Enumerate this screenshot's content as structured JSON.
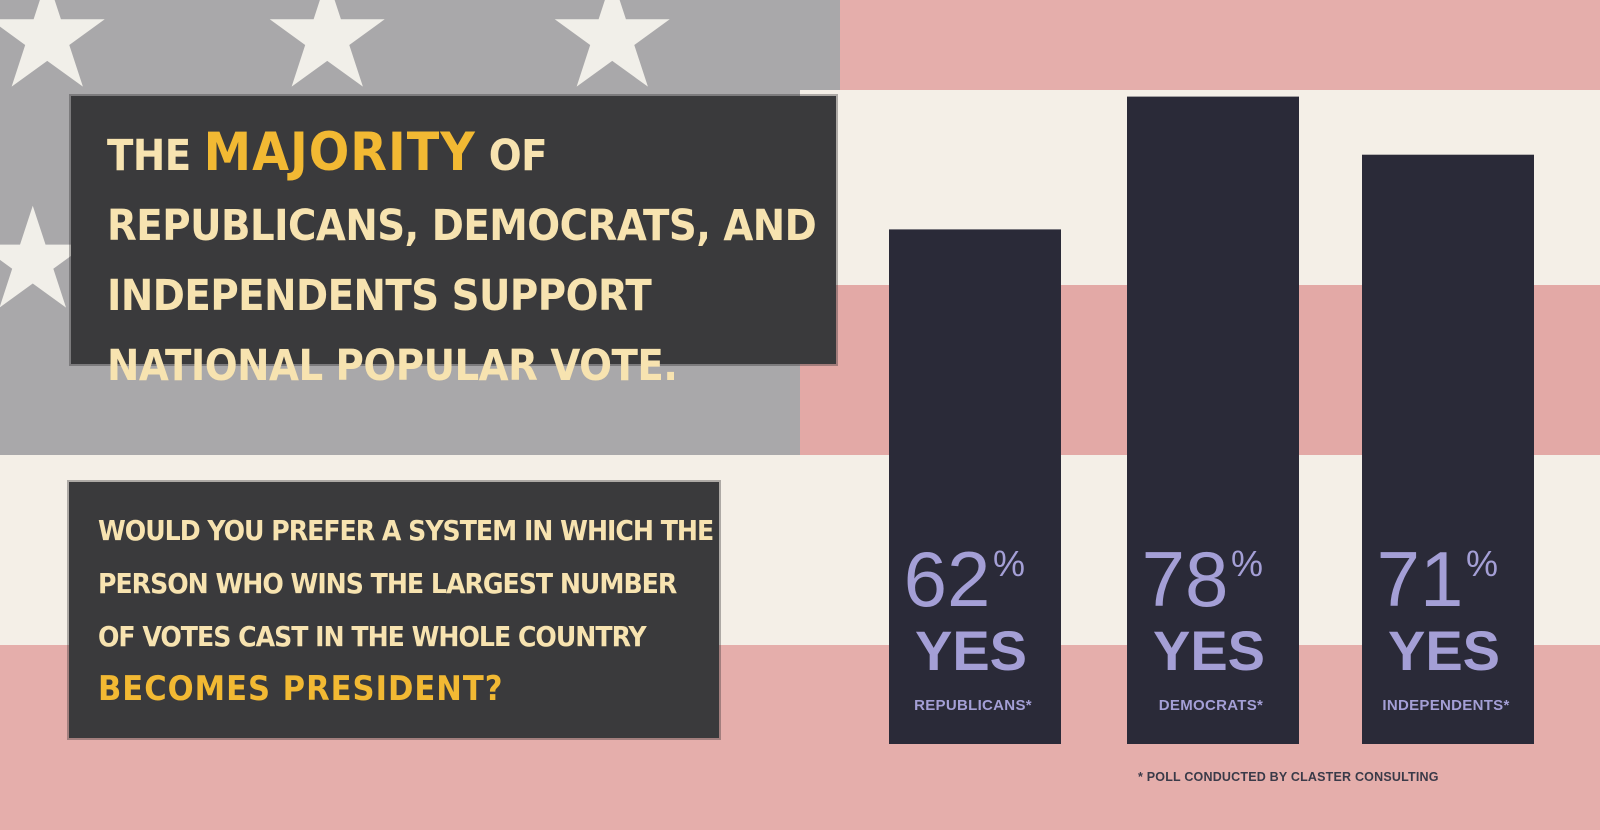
{
  "headline": {
    "lead": "THE",
    "highlight": "MAJORITY",
    "rest": "OF REPUBLICANS, DEMOCRATS, AND INDEPENDENTS SUPPORT NATIONAL POPULAR VOTE."
  },
  "question": {
    "text": "WOULD YOU PREFER A SYSTEM IN WHICH THE PERSON WHO WINS THE LARGEST NUMBER OF VOTES CAST IN THE WHOLE COUNTRY",
    "highlight": "BECOMES PRESIDENT?"
  },
  "footnote": "* POLL CONDUCTED BY CLASTER CONSULTING",
  "colors": {
    "bar": "#2a2a38",
    "bar_text": "#a49fd6",
    "box": "#3a3a3c",
    "headline_text": "#f7e3b0",
    "highlight": "#f2b933",
    "stripe_red": "#e3a9a6",
    "stripe_white": "#f3eee6",
    "canton": "#a9a8aa"
  },
  "chart_data": {
    "type": "bar",
    "categories": [
      "REPUBLICANS*",
      "DEMOCRATS*",
      "INDEPENDENTS*"
    ],
    "values": [
      62,
      78,
      71
    ],
    "value_suffix": "%",
    "value_label": "YES",
    "footnote": "* POLL CONDUCTED BY CLASTER CONSULTING"
  }
}
